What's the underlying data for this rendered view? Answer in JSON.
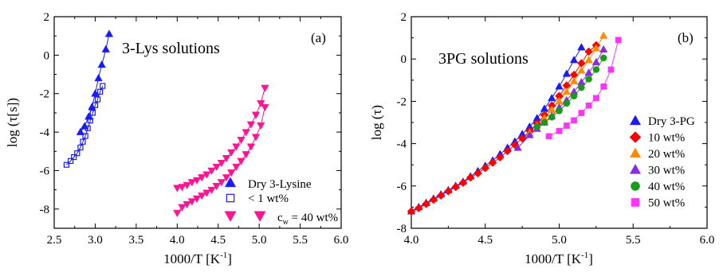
{
  "chart_data": [
    {
      "type": "scatter",
      "panel_label": "(a)",
      "title": "3-Lys solutions",
      "xlabel": "1000/T [K",
      "xlabel_sup": "-1",
      "xlabel_close": "]",
      "ylabel": "log (τ[s])",
      "xlim": [
        2.5,
        6.0
      ],
      "ylim": [
        -9,
        2
      ],
      "x_ticks": [
        "2.5",
        "3.0",
        "3.5",
        "4.0",
        "4.5",
        "5.0",
        "5.5",
        "6.0"
      ],
      "y_ticks": [
        "-8",
        "-6",
        "-4",
        "-2",
        "0",
        "2"
      ],
      "legend_position": "bottom-right",
      "series": [
        {
          "name": "Dry 3-Lysine",
          "marker": "triangle-up",
          "filled": true,
          "color": "#1a1aff",
          "x": [
            2.82,
            2.87,
            2.92,
            2.96,
            3.0,
            3.04,
            3.08,
            3.13,
            3.17
          ],
          "y": [
            -4.0,
            -3.7,
            -3.2,
            -2.7,
            -2.0,
            -1.2,
            -0.5,
            0.3,
            1.1
          ]
        },
        {
          "name": "< 1 wt%",
          "marker": "square",
          "filled": false,
          "color": "#1a1aff",
          "x": [
            2.65,
            2.7,
            2.74,
            2.78,
            2.82,
            2.85,
            2.88,
            2.91,
            2.94,
            2.97,
            3.0,
            3.03,
            3.06,
            3.09
          ],
          "y": [
            -5.7,
            -5.5,
            -5.3,
            -5.1,
            -4.8,
            -4.5,
            -4.2,
            -3.8,
            -3.4,
            -3.0,
            -2.6,
            -2.3,
            -1.9,
            -1.6
          ]
        },
        {
          "name": "c",
          "name_sub": "w",
          "name_rest": " = 40 wt%",
          "marker": "triangle-down",
          "filled": true,
          "color": "#ff1493",
          "groups": [
            {
              "x": [
                4.0,
                4.06,
                4.12,
                4.18,
                4.24,
                4.3,
                4.36,
                4.42,
                4.48,
                4.54,
                4.6,
                4.66,
                4.72,
                4.78,
                4.84,
                4.9,
                4.96,
                5.02,
                5.07
              ],
              "y": [
                -6.9,
                -6.85,
                -6.75,
                -6.6,
                -6.5,
                -6.35,
                -6.2,
                -6.0,
                -5.8,
                -5.6,
                -5.35,
                -5.05,
                -4.75,
                -4.4,
                -4.0,
                -3.6,
                -3.1,
                -2.5,
                -1.7
              ]
            },
            {
              "x": [
                4.0,
                4.06,
                4.12,
                4.18,
                4.24,
                4.3,
                4.36,
                4.42,
                4.48,
                4.54,
                4.6,
                4.66,
                4.72,
                4.78,
                4.84,
                4.9,
                4.96,
                5.02,
                5.07
              ],
              "y": [
                -8.2,
                -7.9,
                -7.75,
                -7.6,
                -7.45,
                -7.3,
                -7.15,
                -7.0,
                -6.8,
                -6.6,
                -6.35,
                -6.1,
                -5.8,
                -5.5,
                -5.15,
                -4.75,
                -4.25,
                -3.65,
                -2.7
              ]
            }
          ]
        }
      ]
    },
    {
      "type": "scatter",
      "panel_label": "(b)",
      "title": "3PG solutions",
      "xlabel": "1000/T [K",
      "xlabel_sup": "-1",
      "xlabel_close": "]",
      "ylabel": "log (τ)",
      "xlim": [
        4.0,
        6.0
      ],
      "ylim": [
        -8,
        2
      ],
      "x_ticks": [
        "4.0",
        "4.5",
        "5.0",
        "5.5",
        "6.0"
      ],
      "y_ticks": [
        "-8",
        "-6",
        "-4",
        "-2",
        "0",
        "2"
      ],
      "legend_position": "right",
      "series": [
        {
          "name": "Dry 3-PG",
          "marker": "triangle-up",
          "color": "#1a1aff",
          "x": [
            4.0,
            4.05,
            4.1,
            4.15,
            4.2,
            4.25,
            4.3,
            4.35,
            4.4,
            4.45,
            4.5,
            4.55,
            4.6,
            4.65,
            4.7,
            4.75,
            4.8,
            4.85,
            4.9,
            4.95,
            5.0,
            5.05,
            5.1,
            5.15
          ],
          "y": [
            -7.2,
            -7.0,
            -6.8,
            -6.6,
            -6.4,
            -6.2,
            -6.0,
            -5.8,
            -5.55,
            -5.3,
            -5.05,
            -4.8,
            -4.5,
            -4.2,
            -3.9,
            -3.55,
            -3.2,
            -2.8,
            -2.35,
            -1.85,
            -1.3,
            -0.7,
            -0.05,
            0.55
          ]
        },
        {
          "name": "10 wt%",
          "marker": "diamond",
          "color": "#ff0000",
          "x": [
            4.0,
            4.05,
            4.1,
            4.15,
            4.2,
            4.25,
            4.3,
            4.35,
            4.4,
            4.45,
            4.5,
            4.55,
            4.6,
            4.65,
            4.7,
            4.75,
            4.8,
            4.85,
            4.9,
            4.95,
            5.0,
            5.05,
            5.1,
            5.15,
            5.2,
            5.25
          ],
          "y": [
            -7.2,
            -7.05,
            -6.85,
            -6.65,
            -6.45,
            -6.25,
            -6.05,
            -5.85,
            -5.6,
            -5.4,
            -5.15,
            -4.9,
            -4.65,
            -4.35,
            -4.05,
            -3.75,
            -3.4,
            -3.05,
            -2.65,
            -2.2,
            -1.75,
            -1.25,
            -0.75,
            -0.2,
            0.35,
            0.65
          ]
        },
        {
          "name": "20 wt%",
          "marker": "triangle-up",
          "color": "#ff8c00",
          "x": [
            4.8,
            4.85,
            4.9,
            4.95,
            5.0,
            5.05,
            5.1,
            5.15,
            5.2,
            5.25,
            5.3
          ],
          "y": [
            -3.5,
            -3.15,
            -2.8,
            -2.4,
            -2.0,
            -1.55,
            -1.05,
            -0.55,
            -0.05,
            0.5,
            1.1
          ]
        },
        {
          "name": "30 wt%",
          "marker": "triangle-up",
          "color": "#8a2be2",
          "x": [
            4.72,
            4.8,
            4.85,
            4.9,
            4.95,
            5.0,
            5.05,
            5.1,
            5.15,
            5.2,
            5.25,
            5.3
          ],
          "y": [
            -4.2,
            -3.6,
            -3.3,
            -3.0,
            -2.7,
            -2.3,
            -1.95,
            -1.55,
            -1.1,
            -0.65,
            -0.15,
            0.45
          ]
        },
        {
          "name": "40 wt%",
          "marker": "circle",
          "color": "#1a9a1a",
          "x": [
            4.85,
            4.9,
            4.95,
            5.0,
            5.05,
            5.1,
            5.15,
            5.2,
            5.25,
            5.3
          ],
          "y": [
            -3.2,
            -3.0,
            -2.75,
            -2.45,
            -2.1,
            -1.75,
            -1.35,
            -0.95,
            -0.5,
            0.05
          ]
        },
        {
          "name": "50 wt%",
          "marker": "square",
          "color": "#ff33ff",
          "x": [
            4.93,
            5.0,
            5.05,
            5.1,
            5.15,
            5.2,
            5.25,
            5.3,
            5.35,
            5.4
          ],
          "y": [
            -3.65,
            -3.4,
            -3.15,
            -2.9,
            -2.55,
            -2.2,
            -1.85,
            -1.3,
            -0.5,
            0.9
          ]
        }
      ]
    }
  ]
}
